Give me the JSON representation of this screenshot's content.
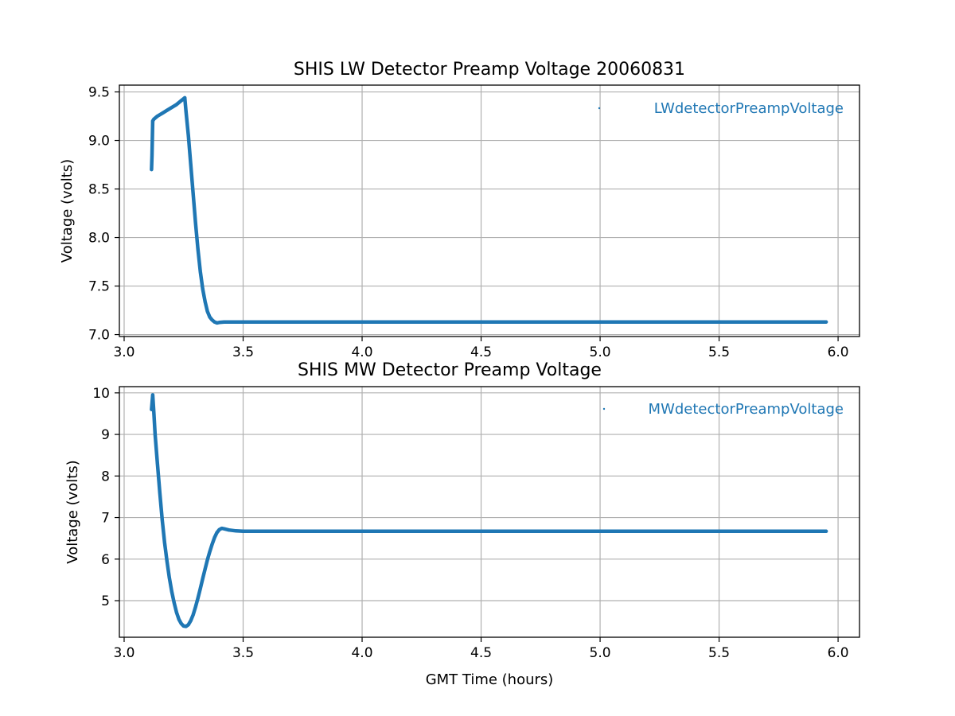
{
  "chart_data": [
    {
      "type": "scatter",
      "title": "SHIS LW Detector Preamp Voltage 20060831",
      "xlabel": "",
      "ylabel": "Voltage (volts)",
      "xlim": [
        2.98,
        6.09
      ],
      "ylim": [
        6.98,
        9.57
      ],
      "xticks": [
        3.0,
        3.5,
        4.0,
        4.5,
        5.0,
        5.5,
        6.0
      ],
      "xtick_labels": [
        "3.0",
        "3.5",
        "4.0",
        "4.5",
        "5.0",
        "5.5",
        "6.0"
      ],
      "yticks": [
        7.0,
        7.5,
        8.0,
        8.5,
        9.0,
        9.5
      ],
      "ytick_labels": [
        "7.0",
        "7.5",
        "8.0",
        "8.5",
        "9.0",
        "9.5"
      ],
      "grid": true,
      "legend": "upper right",
      "series": [
        {
          "name": "LWdetectorPreampVoltage",
          "color": "#1f77b4",
          "x": [
            3.115,
            3.117,
            3.12,
            3.125,
            3.14,
            3.16,
            3.18,
            3.2,
            3.22,
            3.24,
            3.255,
            3.26,
            3.27,
            3.28,
            3.29,
            3.3,
            3.31,
            3.32,
            3.33,
            3.34,
            3.35,
            3.36,
            3.37,
            3.38,
            3.39,
            3.4,
            3.42,
            3.45,
            3.5,
            3.6,
            3.8,
            4.0,
            4.5,
            5.0,
            5.5,
            5.95
          ],
          "y": [
            8.7,
            8.85,
            9.2,
            9.22,
            9.25,
            9.28,
            9.31,
            9.34,
            9.37,
            9.41,
            9.44,
            9.3,
            9.05,
            8.75,
            8.45,
            8.15,
            7.88,
            7.65,
            7.47,
            7.34,
            7.24,
            7.18,
            7.15,
            7.13,
            7.12,
            7.125,
            7.13,
            7.13,
            7.13,
            7.13,
            7.13,
            7.13,
            7.13,
            7.13,
            7.13,
            7.13
          ]
        }
      ]
    },
    {
      "type": "scatter",
      "title": "SHIS MW Detector Preamp Voltage",
      "xlabel": "GMT Time (hours)",
      "ylabel": "Voltage (volts)",
      "xlim": [
        2.98,
        6.09
      ],
      "ylim": [
        4.12,
        10.15
      ],
      "xticks": [
        3.0,
        3.5,
        4.0,
        4.5,
        5.0,
        5.5,
        6.0
      ],
      "xtick_labels": [
        "3.0",
        "3.5",
        "4.0",
        "4.5",
        "5.0",
        "5.5",
        "6.0"
      ],
      "yticks": [
        5,
        6,
        7,
        8,
        9,
        10
      ],
      "ytick_labels": [
        "5",
        "6",
        "7",
        "8",
        "9",
        "10"
      ],
      "grid": true,
      "legend": "upper right",
      "series": [
        {
          "name": "MWdetectorPreampVoltage",
          "color": "#1f77b4",
          "x": [
            3.115,
            3.12,
            3.125,
            3.13,
            3.14,
            3.15,
            3.16,
            3.17,
            3.18,
            3.19,
            3.2,
            3.21,
            3.22,
            3.23,
            3.24,
            3.25,
            3.26,
            3.27,
            3.28,
            3.29,
            3.3,
            3.31,
            3.32,
            3.33,
            3.34,
            3.35,
            3.36,
            3.37,
            3.38,
            3.39,
            3.4,
            3.41,
            3.42,
            3.44,
            3.47,
            3.5,
            3.6,
            3.8,
            4.0,
            4.5,
            5.0,
            5.5,
            5.95
          ],
          "y": [
            9.6,
            9.95,
            9.5,
            9.0,
            8.3,
            7.6,
            6.95,
            6.4,
            5.95,
            5.55,
            5.22,
            4.95,
            4.72,
            4.55,
            4.45,
            4.39,
            4.38,
            4.42,
            4.52,
            4.66,
            4.85,
            5.06,
            5.29,
            5.53,
            5.76,
            5.98,
            6.18,
            6.36,
            6.52,
            6.64,
            6.71,
            6.74,
            6.73,
            6.7,
            6.68,
            6.67,
            6.67,
            6.67,
            6.67,
            6.67,
            6.67,
            6.67,
            6.67
          ]
        }
      ]
    }
  ]
}
